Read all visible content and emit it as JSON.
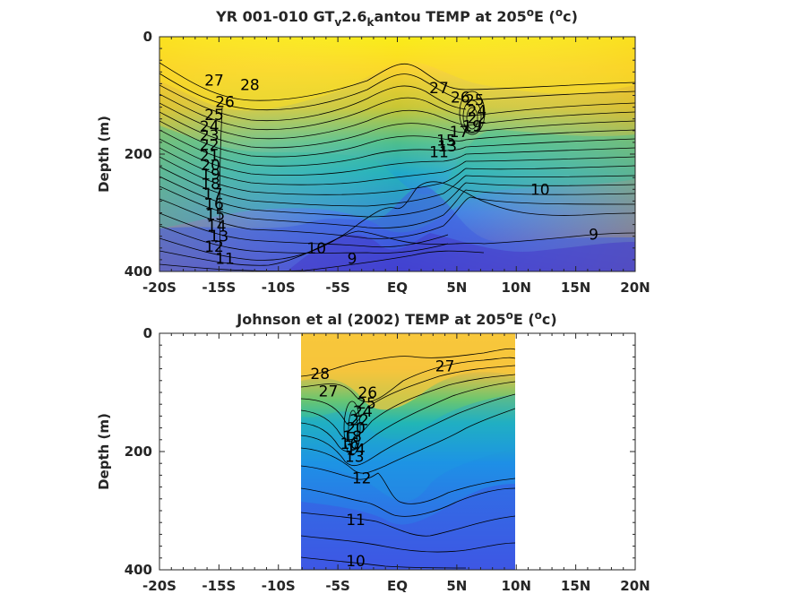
{
  "chart_data": [
    {
      "type": "heatmap",
      "title_parts": {
        "a": "YR 001-010 GT",
        "sub1": "v",
        "b": "2.6",
        "sub2": "k",
        "c": "antou TEMP at 205",
        "sup1": "o",
        "d": "E (",
        "sup2": "o",
        "e": "c)"
      },
      "ylabel": "Depth (m)",
      "xlim": [
        -20,
        20
      ],
      "ylim": [
        0,
        400
      ],
      "y_reversed": true,
      "x_tick_labels": [
        "-20S",
        "-15S",
        "-10S",
        "-5S",
        "EQ",
        "5N",
        "10N",
        "15N",
        "20N"
      ],
      "y_tick_labels": [
        "0",
        "200",
        "400"
      ],
      "data_extent_lat": [
        -20,
        20
      ],
      "contour_labels": [
        {
          "text": "28",
          "lat": -12.4,
          "depth": 82
        },
        {
          "text": "27",
          "lat": -15.4,
          "depth": 74
        },
        {
          "text": "26",
          "lat": -14.5,
          "depth": 111
        },
        {
          "text": "25",
          "lat": -15.4,
          "depth": 133
        },
        {
          "text": "24",
          "lat": -15.8,
          "depth": 153
        },
        {
          "text": "23",
          "lat": -15.8,
          "depth": 168
        },
        {
          "text": "22",
          "lat": -15.8,
          "depth": 184
        },
        {
          "text": "21",
          "lat": -15.8,
          "depth": 202
        },
        {
          "text": "20",
          "lat": -15.7,
          "depth": 218
        },
        {
          "text": "19",
          "lat": -15.7,
          "depth": 234
        },
        {
          "text": "18",
          "lat": -15.7,
          "depth": 250
        },
        {
          "text": "17",
          "lat": -15.5,
          "depth": 268
        },
        {
          "text": "16",
          "lat": -15.4,
          "depth": 285
        },
        {
          "text": "15",
          "lat": -15.3,
          "depth": 303
        },
        {
          "text": "14",
          "lat": -15.2,
          "depth": 322
        },
        {
          "text": "13",
          "lat": -15.0,
          "depth": 340
        },
        {
          "text": "12",
          "lat": -15.4,
          "depth": 357
        },
        {
          "text": "11",
          "lat": -14.5,
          "depth": 378
        },
        {
          "text": "10",
          "lat": -6.8,
          "depth": 360
        },
        {
          "text": "9",
          "lat": -3.8,
          "depth": 378
        },
        {
          "text": "27",
          "lat": 3.5,
          "depth": 87
        },
        {
          "text": "26",
          "lat": 5.3,
          "depth": 103
        },
        {
          "text": "25",
          "lat": 6.5,
          "depth": 108
        },
        {
          "text": "24",
          "lat": 6.7,
          "depth": 126
        },
        {
          "text": "22",
          "lat": 6.7,
          "depth": 138
        },
        {
          "text": "19",
          "lat": 6.3,
          "depth": 152
        },
        {
          "text": "17",
          "lat": 5.2,
          "depth": 162
        },
        {
          "text": "15",
          "lat": 4.1,
          "depth": 176
        },
        {
          "text": "13",
          "lat": 4.2,
          "depth": 186
        },
        {
          "text": "11",
          "lat": 3.5,
          "depth": 196
        },
        {
          "text": "10",
          "lat": 12.0,
          "depth": 260
        },
        {
          "text": "9",
          "lat": 16.5,
          "depth": 337
        }
      ]
    },
    {
      "type": "heatmap",
      "title_parts": {
        "a": "Johnson et al (2002) TEMP at 205",
        "sup1": "o",
        "d": "E (",
        "sup2": "o",
        "e": "c)"
      },
      "ylabel": "Depth (m)",
      "xlim": [
        -20,
        20
      ],
      "ylim": [
        0,
        400
      ],
      "y_reversed": true,
      "x_tick_labels": [
        "-20S",
        "-15S",
        "-10S",
        "-5S",
        "EQ",
        "5N",
        "10N",
        "15N",
        "20N"
      ],
      "y_tick_labels": [
        "0",
        "200",
        "400"
      ],
      "data_extent_lat": [
        -8,
        10
      ],
      "contour_labels": [
        {
          "text": "28",
          "lat": -6.5,
          "depth": 68
        },
        {
          "text": "27",
          "lat": -5.8,
          "depth": 98
        },
        {
          "text": "26",
          "lat": -2.5,
          "depth": 100
        },
        {
          "text": "25",
          "lat": -2.6,
          "depth": 118
        },
        {
          "text": "24",
          "lat": -2.9,
          "depth": 132
        },
        {
          "text": "22",
          "lat": -3.2,
          "depth": 146
        },
        {
          "text": "20",
          "lat": -3.5,
          "depth": 160
        },
        {
          "text": "18",
          "lat": -3.8,
          "depth": 174
        },
        {
          "text": "16",
          "lat": -4.0,
          "depth": 186
        },
        {
          "text": "14",
          "lat": -3.5,
          "depth": 196
        },
        {
          "text": "13",
          "lat": -3.6,
          "depth": 208
        },
        {
          "text": "12",
          "lat": -3.0,
          "depth": 245
        },
        {
          "text": "11",
          "lat": -3.5,
          "depth": 315
        },
        {
          "text": "10",
          "lat": -3.5,
          "depth": 385
        },
        {
          "text": "27",
          "lat": 4.0,
          "depth": 55
        }
      ]
    }
  ],
  "colors": {
    "warm": "#f9fb0e",
    "mid": "#2fbcaa",
    "cool": "#3e4fd9",
    "deep": "#4338d0",
    "axis": "#262626"
  }
}
